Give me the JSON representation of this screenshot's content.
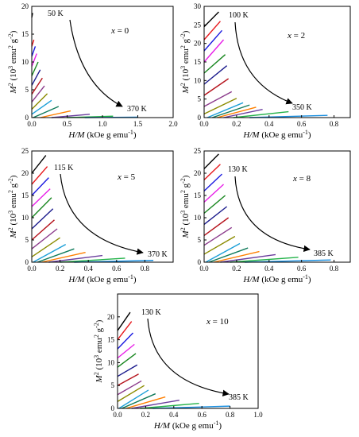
{
  "palette": [
    "#000000",
    "#e8181c",
    "#1a1ae0",
    "#e81ee8",
    "#17861e",
    "#1a1a8c",
    "#b5121b",
    "#8b3a8b",
    "#8b8b00",
    "#1c9fd8",
    "#0f7a5a",
    "#ff7f00",
    "#6b3e9e",
    "#24b34a",
    "#1a8fe0"
  ],
  "chart_data": [
    {
      "type": "line",
      "panel_label": "x = 0",
      "xlabel": "H/M (kOe g emu-1)",
      "ylabel": "M2 (103 emu2 g-2)",
      "xlim": [
        0,
        2.0
      ],
      "ylim": [
        0,
        20
      ],
      "xticks": [
        "0.0",
        "0.5",
        "1.0",
        "1.5",
        "2.0"
      ],
      "yticks": [
        "0",
        "5",
        "10",
        "15",
        "20"
      ],
      "temp_start": "50 K",
      "temp_end": "370 K",
      "series": [
        {
          "x0": 0,
          "y0": 18.0,
          "x1": 0.012,
          "y1": 18.8
        },
        {
          "x0": 0,
          "y0": 12.8,
          "x1": 0.03,
          "y1": 14.0
        },
        {
          "x0": 0,
          "y0": 11.0,
          "x1": 0.05,
          "y1": 12.8
        },
        {
          "x0": 0,
          "y0": 9.2,
          "x1": 0.07,
          "y1": 11.5
        },
        {
          "x0": 0,
          "y0": 7.5,
          "x1": 0.09,
          "y1": 10.0
        },
        {
          "x0": 0,
          "y0": 5.8,
          "x1": 0.12,
          "y1": 8.6
        },
        {
          "x0": 0,
          "y0": 4.2,
          "x1": 0.15,
          "y1": 7.1
        },
        {
          "x0": 0,
          "y0": 2.8,
          "x1": 0.18,
          "y1": 5.7
        },
        {
          "x0": 0,
          "y0": 1.5,
          "x1": 0.22,
          "y1": 4.3
        },
        {
          "x0": 0,
          "y0": 0.6,
          "x1": 0.28,
          "y1": 3.1
        },
        {
          "x0": 0.02,
          "y0": 0.0,
          "x1": 0.38,
          "y1": 2.0
        },
        {
          "x0": 0.12,
          "y0": 0.0,
          "x1": 0.55,
          "y1": 1.2
        },
        {
          "x0": 0.28,
          "y0": 0.0,
          "x1": 0.82,
          "y1": 0.6
        },
        {
          "x0": 0.5,
          "y0": 0.0,
          "x1": 1.15,
          "y1": 0.25
        },
        {
          "x0": 0.75,
          "y0": 0.0,
          "x1": 1.5,
          "y1": 0.08
        }
      ]
    },
    {
      "type": "line",
      "panel_label": "x = 2",
      "xlabel": "H/M (kOe g emu-1)",
      "ylabel": "M2 (103 emu2 g-2)",
      "xlim": [
        0,
        0.9
      ],
      "ylim": [
        0,
        30
      ],
      "xticks": [
        "0.0",
        "0.2",
        "0.4",
        "0.6",
        "0.8"
      ],
      "yticks": [
        "0",
        "5",
        "10",
        "15",
        "20",
        "25",
        "30"
      ],
      "temp_start": "100 K",
      "temp_end": "350 K",
      "series": [
        {
          "x0": 0,
          "y0": 24.5,
          "x1": 0.09,
          "y1": 28.5
        },
        {
          "x0": 0,
          "y0": 21.0,
          "x1": 0.1,
          "y1": 26.0
        },
        {
          "x0": 0,
          "y0": 18.0,
          "x1": 0.11,
          "y1": 23.5
        },
        {
          "x0": 0,
          "y0": 15.0,
          "x1": 0.12,
          "y1": 21.0
        },
        {
          "x0": 0,
          "y0": 12.0,
          "x1": 0.13,
          "y1": 17.0
        },
        {
          "x0": 0,
          "y0": 9.0,
          "x1": 0.14,
          "y1": 14.0
        },
        {
          "x0": 0,
          "y0": 6.0,
          "x1": 0.15,
          "y1": 10.5
        },
        {
          "x0": 0,
          "y0": 3.0,
          "x1": 0.17,
          "y1": 7.0
        },
        {
          "x0": 0,
          "y0": 1.0,
          "x1": 0.2,
          "y1": 5.2
        },
        {
          "x0": 0.02,
          "y0": 0.0,
          "x1": 0.24,
          "y1": 4.0
        },
        {
          "x0": 0.05,
          "y0": 0.0,
          "x1": 0.28,
          "y1": 3.4
        },
        {
          "x0": 0.08,
          "y0": 0.0,
          "x1": 0.32,
          "y1": 2.8
        },
        {
          "x0": 0.12,
          "y0": 0.0,
          "x1": 0.36,
          "y1": 2.2
        },
        {
          "x0": 0.18,
          "y0": 0.0,
          "x1": 0.52,
          "y1": 1.6
        },
        {
          "x0": 0.28,
          "y0": 0.0,
          "x1": 0.76,
          "y1": 0.6
        }
      ]
    },
    {
      "type": "line",
      "panel_label": "x = 5",
      "xlabel": "H/M (kOe g emu-1)",
      "ylabel": "M2 (103 emu2 g-2)",
      "xlim": [
        0,
        1.0
      ],
      "ylim": [
        0,
        25
      ],
      "xticks": [
        "0.0",
        "0.2",
        "0.4",
        "0.6",
        "0.8"
      ],
      "yticks": [
        "0",
        "5",
        "10",
        "15",
        "20",
        "25"
      ],
      "temp_start": "115 K",
      "temp_end": "370 K",
      "series": [
        {
          "x0": 0,
          "y0": 20.0,
          "x1": 0.1,
          "y1": 24.0
        },
        {
          "x0": 0,
          "y0": 17.5,
          "x1": 0.11,
          "y1": 21.5
        },
        {
          "x0": 0,
          "y0": 15.0,
          "x1": 0.12,
          "y1": 19.0
        },
        {
          "x0": 0,
          "y0": 12.5,
          "x1": 0.13,
          "y1": 16.5
        },
        {
          "x0": 0,
          "y0": 10.0,
          "x1": 0.14,
          "y1": 14.5
        },
        {
          "x0": 0,
          "y0": 7.5,
          "x1": 0.15,
          "y1": 12.0
        },
        {
          "x0": 0,
          "y0": 5.0,
          "x1": 0.16,
          "y1": 9.5
        },
        {
          "x0": 0,
          "y0": 3.0,
          "x1": 0.18,
          "y1": 7.5
        },
        {
          "x0": 0,
          "y0": 1.2,
          "x1": 0.2,
          "y1": 5.5
        },
        {
          "x0": 0.01,
          "y0": 0.0,
          "x1": 0.24,
          "y1": 4.0
        },
        {
          "x0": 0.04,
          "y0": 0.0,
          "x1": 0.3,
          "y1": 3.0
        },
        {
          "x0": 0.07,
          "y0": 0.0,
          "x1": 0.38,
          "y1": 2.2
        },
        {
          "x0": 0.12,
          "y0": 0.0,
          "x1": 0.5,
          "y1": 1.5
        },
        {
          "x0": 0.2,
          "y0": 0.0,
          "x1": 0.66,
          "y1": 0.9
        },
        {
          "x0": 0.3,
          "y0": 0.0,
          "x1": 0.86,
          "y1": 0.4
        }
      ]
    },
    {
      "type": "line",
      "panel_label": "x = 8",
      "xlabel": "H/M (kOe g emu-1)",
      "ylabel": "M2 (103 emu2 g-2)",
      "xlim": [
        0,
        0.9
      ],
      "ylim": [
        0,
        25
      ],
      "xticks": [
        "0.0",
        "0.2",
        "0.4",
        "0.6",
        "0.8"
      ],
      "yticks": [
        "0",
        "5",
        "10",
        "15",
        "20",
        "25"
      ],
      "temp_start": "130 K",
      "temp_end": "385 K",
      "series": [
        {
          "x0": 0,
          "y0": 21.0,
          "x1": 0.09,
          "y1": 24.3
        },
        {
          "x0": 0,
          "y0": 18.5,
          "x1": 0.1,
          "y1": 22.0
        },
        {
          "x0": 0,
          "y0": 16.0,
          "x1": 0.11,
          "y1": 19.8
        },
        {
          "x0": 0,
          "y0": 13.5,
          "x1": 0.12,
          "y1": 17.5
        },
        {
          "x0": 0,
          "y0": 11.0,
          "x1": 0.13,
          "y1": 15.0
        },
        {
          "x0": 0,
          "y0": 8.5,
          "x1": 0.14,
          "y1": 12.5
        },
        {
          "x0": 0,
          "y0": 6.0,
          "x1": 0.15,
          "y1": 10.0
        },
        {
          "x0": 0,
          "y0": 3.8,
          "x1": 0.17,
          "y1": 7.8
        },
        {
          "x0": 0,
          "y0": 1.8,
          "x1": 0.19,
          "y1": 5.8
        },
        {
          "x0": 0.01,
          "y0": 0.0,
          "x1": 0.22,
          "y1": 4.2
        },
        {
          "x0": 0.03,
          "y0": 0.0,
          "x1": 0.27,
          "y1": 3.2
        },
        {
          "x0": 0.06,
          "y0": 0.0,
          "x1": 0.34,
          "y1": 2.4
        },
        {
          "x0": 0.1,
          "y0": 0.0,
          "x1": 0.44,
          "y1": 1.7
        },
        {
          "x0": 0.16,
          "y0": 0.0,
          "x1": 0.58,
          "y1": 1.1
        },
        {
          "x0": 0.25,
          "y0": 0.0,
          "x1": 0.78,
          "y1": 0.5
        }
      ]
    },
    {
      "type": "line",
      "panel_label": "x = 10",
      "xlabel": "H/M (kOe g emu-1)",
      "ylabel": "M2 (103 emu2 g-2)",
      "xlim": [
        0,
        1.0
      ],
      "ylim": [
        0,
        25
      ],
      "xticks": [
        "0.0",
        "0.2",
        "0.4",
        "0.6",
        "0.8",
        "1.0"
      ],
      "yticks": [
        "0",
        "5",
        "10",
        "15",
        "20"
      ],
      "temp_start": "130 K",
      "temp_end": "385 K",
      "series": [
        {
          "x0": 0,
          "y0": 17.0,
          "x1": 0.09,
          "y1": 21.0
        },
        {
          "x0": 0,
          "y0": 15.0,
          "x1": 0.1,
          "y1": 19.0
        },
        {
          "x0": 0,
          "y0": 13.0,
          "x1": 0.11,
          "y1": 16.5
        },
        {
          "x0": 0,
          "y0": 11.0,
          "x1": 0.12,
          "y1": 14.0
        },
        {
          "x0": 0,
          "y0": 9.0,
          "x1": 0.13,
          "y1": 12.0
        },
        {
          "x0": 0,
          "y0": 7.0,
          "x1": 0.14,
          "y1": 9.5
        },
        {
          "x0": 0,
          "y0": 5.0,
          "x1": 0.15,
          "y1": 7.5
        },
        {
          "x0": 0,
          "y0": 3.0,
          "x1": 0.17,
          "y1": 6.0
        },
        {
          "x0": 0,
          "y0": 1.5,
          "x1": 0.19,
          "y1": 5.0
        },
        {
          "x0": 0.01,
          "y0": 0.0,
          "x1": 0.22,
          "y1": 4.0
        },
        {
          "x0": 0.03,
          "y0": 0.0,
          "x1": 0.27,
          "y1": 3.2
        },
        {
          "x0": 0.06,
          "y0": 0.0,
          "x1": 0.34,
          "y1": 2.5
        },
        {
          "x0": 0.1,
          "y0": 0.0,
          "x1": 0.44,
          "y1": 1.8
        },
        {
          "x0": 0.16,
          "y0": 0.0,
          "x1": 0.58,
          "y1": 1.1
        },
        {
          "x0": 0.25,
          "y0": 0.0,
          "x1": 0.8,
          "y1": 0.5
        }
      ]
    }
  ]
}
